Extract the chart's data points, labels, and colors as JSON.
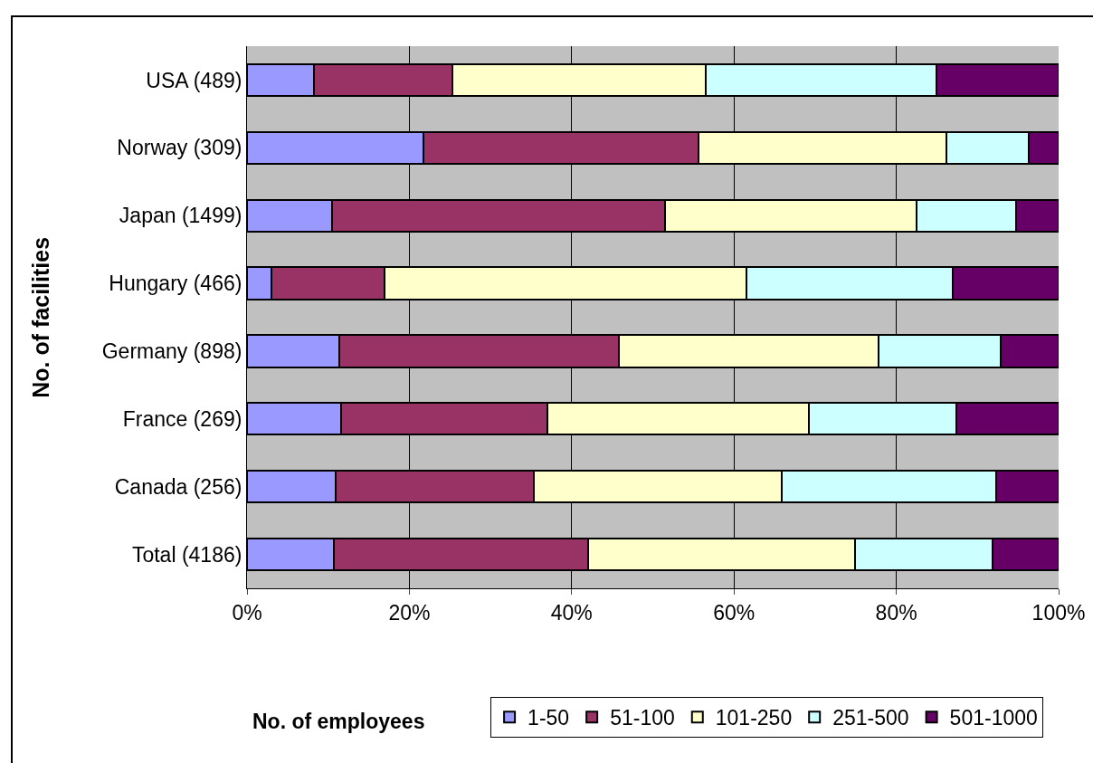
{
  "chart_data": {
    "type": "bar",
    "orientation": "horizontal",
    "stacked": true,
    "xlabel": "No. of employees",
    "ylabel": "No. of facilities",
    "categories": [
      "USA (489)",
      "Norway (309)",
      "Japan (1499)",
      "Hungary (466)",
      "Germany (898)",
      "France (269)",
      "Canada (256)",
      "Total (4186)"
    ],
    "series": [
      {
        "name": "1-50",
        "color": "#9999ff",
        "values": [
          8.2,
          21.7,
          10.5,
          3.0,
          11.4,
          11.6,
          10.9,
          10.7
        ]
      },
      {
        "name": "51-100",
        "color": "#993366",
        "values": [
          17.1,
          33.9,
          41.0,
          13.9,
          34.4,
          25.4,
          24.4,
          31.3
        ]
      },
      {
        "name": "101-250",
        "color": "#ffffcc",
        "values": [
          31.2,
          30.6,
          31.0,
          44.6,
          32.0,
          32.2,
          30.6,
          32.9
        ]
      },
      {
        "name": "251-500",
        "color": "#ccffff",
        "values": [
          28.5,
          10.1,
          12.3,
          25.5,
          15.1,
          18.2,
          26.4,
          17.0
        ]
      },
      {
        "name": "501-1000",
        "color": "#660066",
        "values": [
          15.0,
          3.7,
          5.2,
          13.0,
          7.1,
          12.6,
          7.7,
          8.1
        ]
      }
    ],
    "xlim": [
      0,
      100
    ],
    "xticks": [
      {
        "value": 0,
        "label": "0%"
      },
      {
        "value": 20,
        "label": "20%"
      },
      {
        "value": 40,
        "label": "40%"
      },
      {
        "value": 60,
        "label": "60%"
      },
      {
        "value": 80,
        "label": "80%"
      },
      {
        "value": 100,
        "label": "100%"
      }
    ],
    "grid": "x",
    "legend": "bottom"
  }
}
